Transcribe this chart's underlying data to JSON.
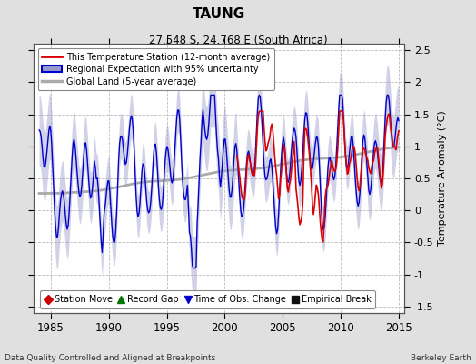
{
  "title": "TAUNG",
  "subtitle": "27.548 S, 24.768 E (South Africa)",
  "xlabel_left": "Data Quality Controlled and Aligned at Breakpoints",
  "xlabel_right": "Berkeley Earth",
  "ylabel": "Temperature Anomaly (°C)",
  "xlim": [
    1983.5,
    2015.5
  ],
  "ylim": [
    -1.6,
    2.6
  ],
  "yticks": [
    -1.5,
    -1.0,
    -0.5,
    0.0,
    0.5,
    1.0,
    1.5,
    2.0,
    2.5
  ],
  "ytick_labels": [
    "-1.5",
    "-1",
    "-0.5",
    "0",
    "0.5",
    "1",
    "1.5",
    "2",
    "2.5"
  ],
  "xticks": [
    1985,
    1990,
    1995,
    2000,
    2005,
    2010,
    2015
  ],
  "background_color": "#e0e0e0",
  "plot_bg_color": "#ffffff",
  "grid_color": "#bbbbbb",
  "station_color": "#dd0000",
  "regional_color": "#0000cc",
  "regional_fill_color": "#9999cc",
  "global_color": "#aaaaaa",
  "legend_items": [
    "This Temperature Station (12-month average)",
    "Regional Expectation with 95% uncertainty",
    "Global Land (5-year average)"
  ],
  "marker_legend": [
    {
      "marker": "D",
      "color": "#cc0000",
      "label": "Station Move"
    },
    {
      "marker": "^",
      "color": "#007700",
      "label": "Record Gap"
    },
    {
      "marker": "v",
      "color": "#0000cc",
      "label": "Time of Obs. Change"
    },
    {
      "marker": "s",
      "color": "#111111",
      "label": "Empirical Break"
    }
  ]
}
